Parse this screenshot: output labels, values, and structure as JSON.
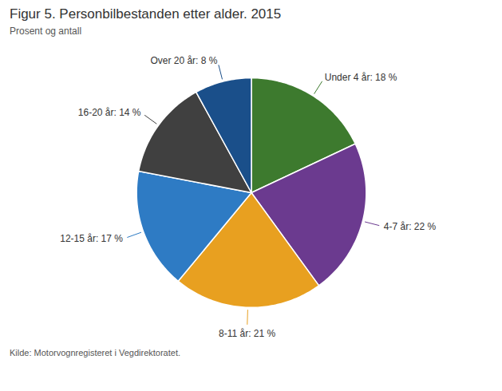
{
  "chart_data": {
    "type": "pie",
    "title": "Figur 5. Personbilbestanden etter alder. 2015",
    "subtitle": "Prosent og antall",
    "source": "Kilde: Motorvognregisteret i Vegdirektoratet.",
    "categories": [
      "Under 4 år: 18 %",
      "4-7 år: 22 %",
      "8-11 år: 21 %",
      "12-15 år: 17 %",
      "16-20 år: 14 %",
      "Over 20 år: 8 %"
    ],
    "values": [
      18,
      22,
      21,
      17,
      14,
      8
    ],
    "colors": [
      "#3d7a2e",
      "#6b3a8f",
      "#e8a020",
      "#2e7bc4",
      "#404040",
      "#1a4f8a"
    ]
  }
}
